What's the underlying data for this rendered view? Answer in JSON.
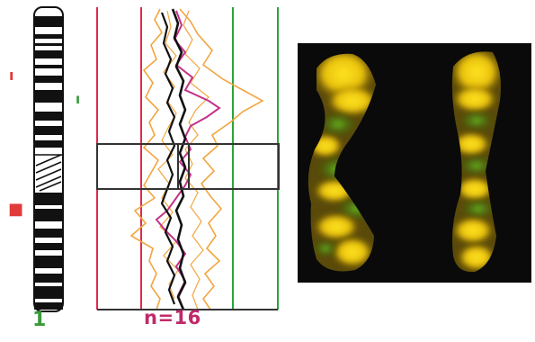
{
  "labels": {
    "chromosome_number": "1",
    "sample_count": "n=16"
  },
  "markers": {
    "loss_upper": "ı",
    "gain_upper": "ı",
    "loss_lower": "■"
  },
  "colors": {
    "loss_line": "#e0294a",
    "gain_line": "#2aa43a",
    "mean_profile": "#111111",
    "sd_profile": "#f2a540",
    "sample_profile": "#c2338a",
    "region_box": "#333333",
    "image_background": "#0a0a0a",
    "fish_yellow": "#f6d20c",
    "fish_green": "#4a9a1a"
  },
  "icons": {
    "ideogram": "chromosome-ideogram",
    "fish_image": "fluorescent-chromosome-image"
  }
}
